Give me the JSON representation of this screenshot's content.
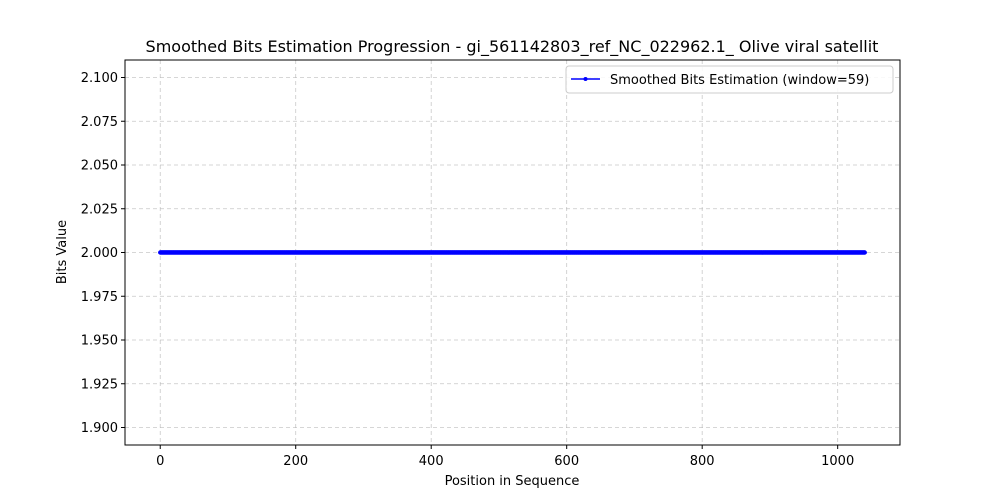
{
  "chart_data": {
    "type": "line",
    "title": "Smoothed Bits Estimation Progression - gi_561142803_ref_NC_022962.1_ Olive viral satellit",
    "xlabel": "Position in Sequence",
    "ylabel": "Bits Value",
    "xlim": [
      -52,
      1092
    ],
    "ylim": [
      1.89,
      2.11
    ],
    "xticks": [
      0,
      200,
      400,
      600,
      800,
      1000
    ],
    "yticks": [
      1.9,
      1.925,
      1.95,
      1.975,
      2.0,
      2.025,
      2.05,
      2.075,
      2.1
    ],
    "xtick_labels": [
      "0",
      "200",
      "400",
      "600",
      "800",
      "1000"
    ],
    "ytick_labels": [
      "1.900",
      "1.925",
      "1.950",
      "1.975",
      "2.000",
      "2.025",
      "2.050",
      "2.075",
      "2.100"
    ],
    "grid": true,
    "legend_position": "top-right",
    "series": [
      {
        "name": "Smoothed Bits Estimation (window=59)",
        "color": "#0000ff",
        "marker": "circle",
        "x_start": 0,
        "x_end": 1040,
        "x_step": 1,
        "y_constant": 2.0
      }
    ]
  }
}
